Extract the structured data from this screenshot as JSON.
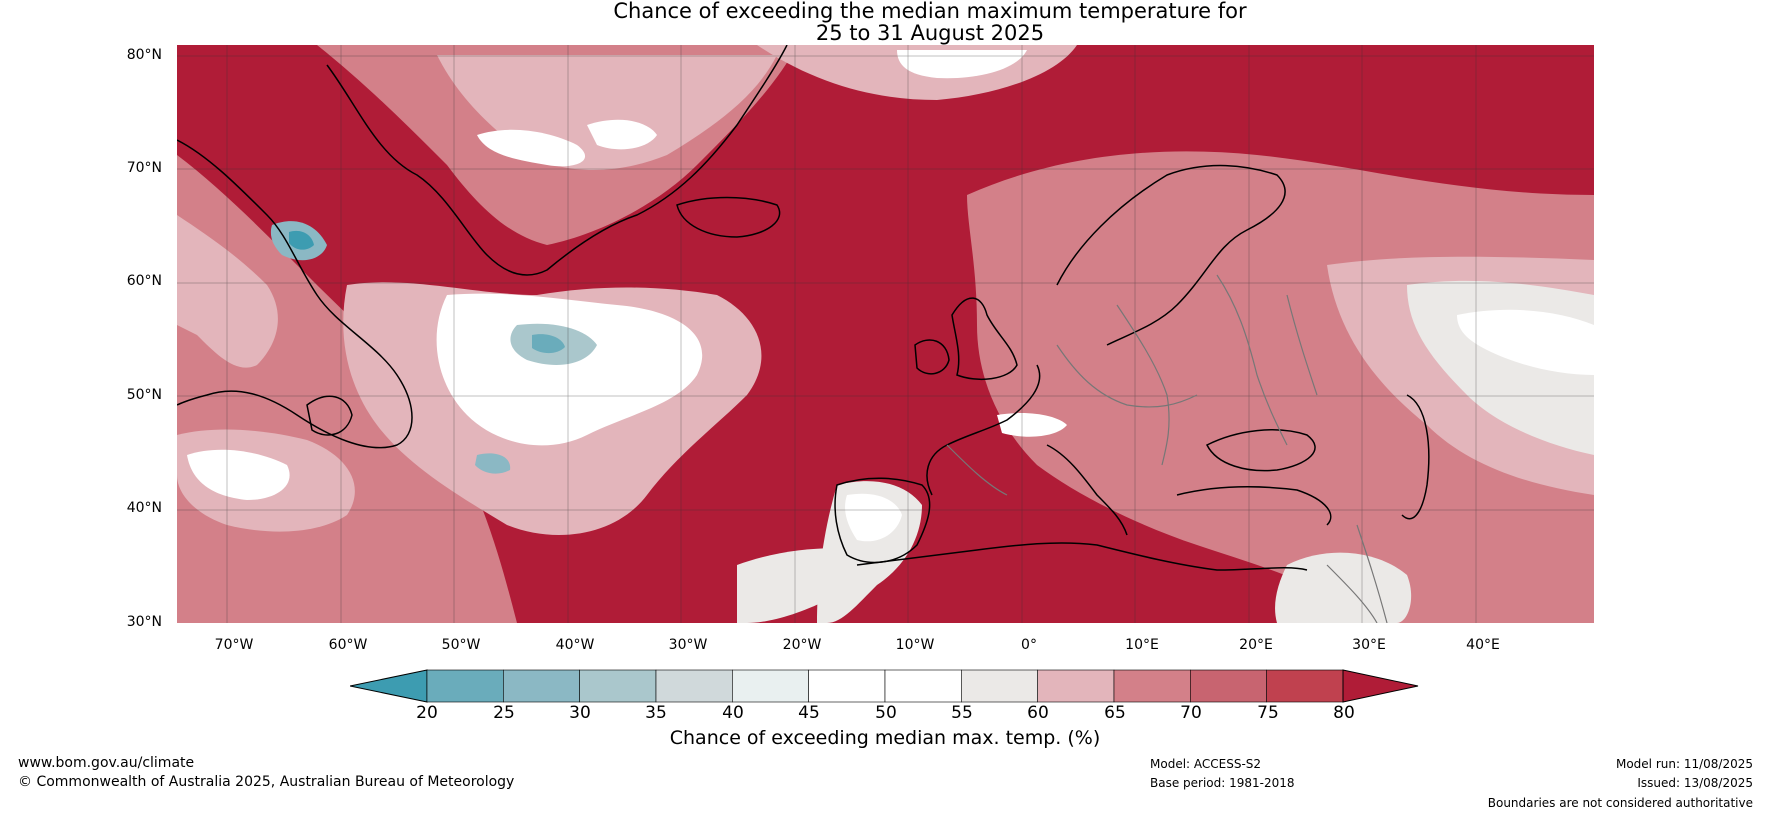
{
  "title": {
    "line1": "Chance of exceeding the median maximum temperature for",
    "line2": "25 to 31 August 2025"
  },
  "lat_labels": [
    "80°N",
    "70°N",
    "60°N",
    "50°N",
    "40°N",
    "30°N"
  ],
  "lon_labels": [
    "70°W",
    "60°W",
    "50°W",
    "40°W",
    "30°W",
    "20°W",
    "10°W",
    "0°",
    "10°E",
    "20°E",
    "30°E",
    "40°E"
  ],
  "colorbar": {
    "ticks": [
      "20",
      "25",
      "30",
      "35",
      "40",
      "45",
      "50",
      "55",
      "60",
      "65",
      "70",
      "75",
      "80"
    ],
    "label": "Chance of exceeding median max. temp. (%)",
    "colors": [
      "#3d9cb1",
      "#6aacbb",
      "#8bb8c4",
      "#aac7cc",
      "#d0d9db",
      "#e9f0f0",
      "#ffffff",
      "#ffffff",
      "#ebe9e7",
      "#e3b5bb",
      "#d38089",
      "#c86470",
      "#c0414f",
      "#b01c37"
    ]
  },
  "map": {
    "projection_extent": {
      "lon_min": -75,
      "lon_max": 50,
      "lat_min": 30,
      "lat_max": 81
    },
    "base_color": "#b01c37"
  },
  "footer": {
    "website": "www.bom.gov.au/climate",
    "copyright": "© Commonwealth of Australia 2025, Australian Bureau of Meteorology",
    "model": "Model: ACCESS-S2",
    "base_period": "Base period: 1981-2018",
    "model_run": "Model run: 11/08/2025",
    "issued": "Issued: 13/08/2025",
    "disclaimer": "Boundaries are not considered authoritative"
  }
}
